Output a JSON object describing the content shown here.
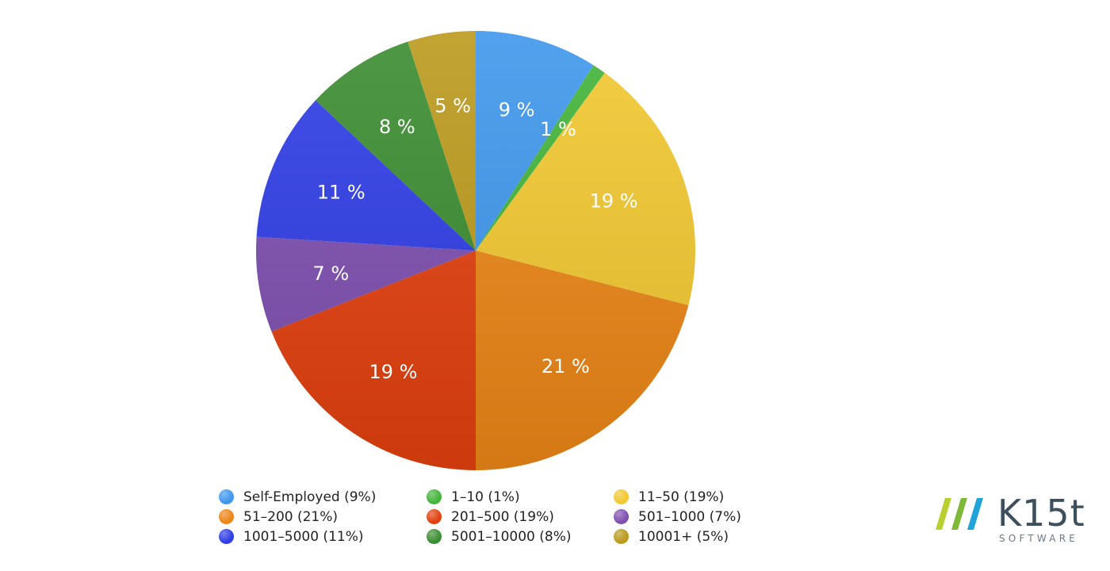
{
  "chart_data": {
    "type": "pie",
    "title": "",
    "labels": [
      "Self-Employed (9%)",
      "1–10 (1%)",
      "11–50 (19%)",
      "51–200 (21%)",
      "201–500 (19%)",
      "501–1000 (7%)",
      "1001–5000 (11%)",
      "5001–10000 (8%)",
      "10001+ (5%)"
    ],
    "values": [
      9,
      1,
      19,
      21,
      19,
      7,
      11,
      8,
      5
    ],
    "slice_labels": [
      "9 %",
      "1 %",
      "19 %",
      "21 %",
      "19 %",
      "7 %",
      "11 %",
      "8 %",
      "5 %"
    ],
    "colors": [
      "#3f97ec",
      "#43b43a",
      "#f2c830",
      "#ec8617",
      "#e2400e",
      "#7e4fb0",
      "#2f3de6",
      "#3b8d31",
      "#bb9a1d"
    ],
    "legend_position": "bottom",
    "start_angle": "12 o'clock",
    "direction": "clockwise"
  },
  "logo": {
    "name": "K15t",
    "subtitle": "SOFTWARE",
    "mark_colors": [
      "#b9cf2f",
      "#7fb93a",
      "#1fa3d8"
    ]
  }
}
